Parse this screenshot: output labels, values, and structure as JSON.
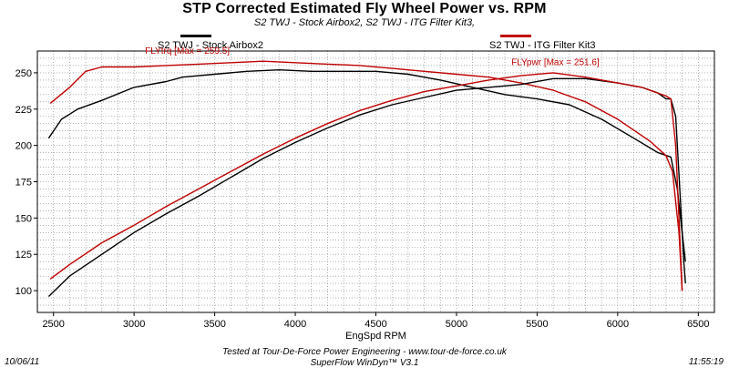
{
  "header": {
    "title": "STP Corrected Estimated Fly Wheel Power vs. RPM",
    "subtitle": "S2 TWJ - Stock Airbox2, S2 TWJ - ITG Filter Kit3,"
  },
  "footer": {
    "line1": "Tested at Tour-De-Force Power Engineering - www.tour-de-force.co.uk",
    "line2": "SuperFlow WinDyn™ V3.1",
    "date": "10/06/11",
    "time": "11:55:19"
  },
  "colors": {
    "stock": "#000000",
    "itg": "#c00000",
    "grid": "#808080"
  },
  "chart_data": {
    "type": "line",
    "title": "STP Corrected Estimated Fly Wheel Power vs. RPM",
    "xlabel": "EngSpd RPM",
    "ylabel": "",
    "xlim": [
      2400,
      6600
    ],
    "ylim": [
      85,
      265
    ],
    "x_ticks": [
      2500,
      3000,
      3500,
      4000,
      4500,
      5000,
      5500,
      6000,
      6500
    ],
    "y_ticks": [
      100,
      125,
      150,
      175,
      200,
      225,
      250
    ],
    "grid": true,
    "legend": [
      {
        "label": "S2 TWJ - Stock Airbox2",
        "color": "#000000"
      },
      {
        "label": "S2 TWJ - ITG Filter Kit3",
        "color": "#c00000"
      }
    ],
    "annotations": [
      {
        "text": "FLYtrq [Max = 259.5]",
        "x": 3500,
        "y": 259.5,
        "color": "#c00000"
      },
      {
        "text": "FLYpwr [Max = 251.6]",
        "x": 5500,
        "y": 251.6,
        "color": "#c00000"
      }
    ],
    "series": [
      {
        "name": "S2 TWJ - Stock Airbox2",
        "measure": "FLYtrq",
        "color": "#000000",
        "x": [
          2470,
          2550,
          2650,
          2800,
          3000,
          3200,
          3300,
          3500,
          3700,
          3900,
          4100,
          4300,
          4500,
          4700,
          4900,
          5100,
          5300,
          5500,
          5700,
          5900,
          6100,
          6250,
          6330,
          6370,
          6400,
          6420
        ],
        "y": [
          205,
          218,
          225,
          231,
          240,
          244,
          247,
          249,
          251,
          252,
          251,
          251,
          251,
          249,
          245,
          240,
          235,
          232,
          228,
          218,
          205,
          195,
          192,
          170,
          140,
          120
        ]
      },
      {
        "name": "S2 TWJ - ITG Filter Kit3",
        "measure": "FLYtrq",
        "color": "#c00000",
        "x": [
          2480,
          2600,
          2700,
          2800,
          3000,
          3200,
          3400,
          3600,
          3800,
          4000,
          4200,
          4400,
          4600,
          4800,
          5000,
          5200,
          5400,
          5600,
          5800,
          6000,
          6200,
          6300,
          6340,
          6380,
          6400
        ],
        "y": [
          229,
          240,
          251,
          254,
          254,
          255,
          256,
          257,
          258,
          257,
          256,
          255,
          253,
          251,
          249,
          247,
          243,
          238,
          230,
          218,
          203,
          193,
          182,
          140,
          100
        ]
      },
      {
        "name": "S2 TWJ - Stock Airbox2",
        "measure": "FLYpwr",
        "color": "#000000",
        "x": [
          2470,
          2600,
          2800,
          3000,
          3200,
          3400,
          3600,
          3800,
          4000,
          4200,
          4400,
          4600,
          4800,
          5000,
          5200,
          5400,
          5600,
          5800,
          6000,
          6150,
          6250,
          6300,
          6330,
          6360,
          6380,
          6410,
          6420
        ],
        "y": [
          96,
          110,
          125,
          140,
          153,
          165,
          178,
          191,
          202,
          212,
          221,
          228,
          233,
          238,
          240,
          242,
          246,
          246,
          243,
          240,
          236,
          232,
          232,
          220,
          180,
          120,
          105
        ]
      },
      {
        "name": "S2 TWJ - ITG Filter Kit3",
        "measure": "FLYpwr",
        "color": "#c00000",
        "x": [
          2480,
          2600,
          2800,
          3000,
          3200,
          3400,
          3600,
          3800,
          4000,
          4200,
          4400,
          4600,
          4800,
          5000,
          5200,
          5400,
          5600,
          5800,
          6000,
          6150,
          6250,
          6300,
          6330,
          6360,
          6380,
          6400
        ],
        "y": [
          108,
          118,
          133,
          145,
          158,
          170,
          182,
          194,
          205,
          215,
          224,
          231,
          237,
          241,
          245,
          248,
          250,
          247,
          243,
          240,
          236,
          234,
          232,
          200,
          150,
          100
        ]
      }
    ]
  }
}
